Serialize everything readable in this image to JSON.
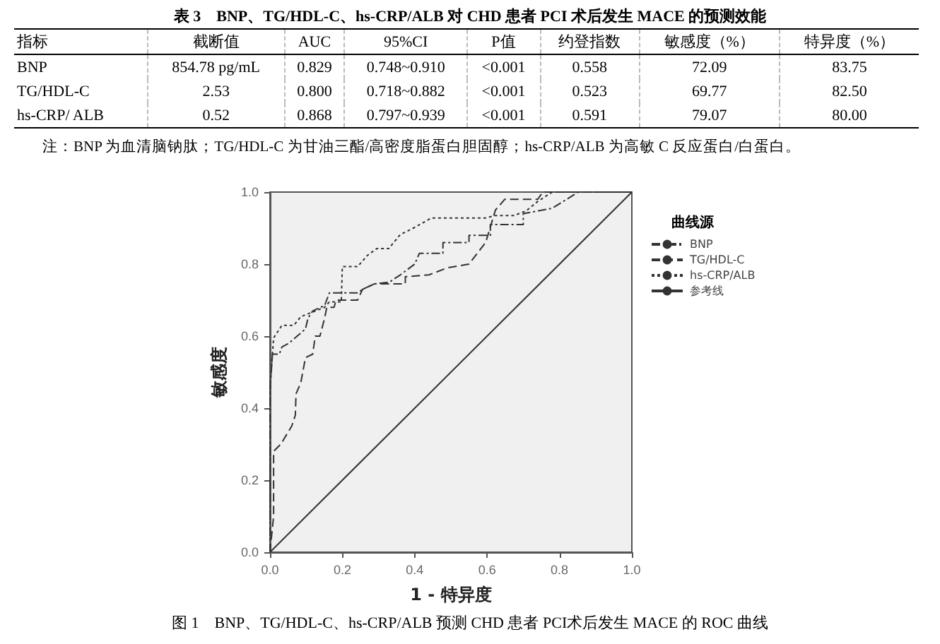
{
  "chart_data": [
    {
      "type": "other",
      "title": "表 3　BNP、TG/HDL-C、hs-CRP/ALB 对 CHD 患者 PCI 术后发生 MACE 的预测效能",
      "annotations": [
        "指标",
        "截断值",
        "AUC",
        "95%CI",
        "P值",
        "约登指数",
        "敏感度（%）",
        "特异度（%）",
        "BNP",
        "854.78 pg/mL",
        "0.829",
        "0.748~0.910",
        "<0.001",
        "0.558",
        "72.09",
        "83.75",
        "TG/HDL-C",
        "2.53",
        "0.800",
        "0.718~0.882",
        "<0.001",
        "0.523",
        "69.77",
        "82.50",
        "hs-CRP/ ALB",
        "0.52",
        "0.868",
        "0.797~0.939",
        "<0.001",
        "0.591",
        "79.07",
        "80.00",
        "注：BNP 为血清脑钠肽；TG/HDL-C 为甘油三酯/高密度脂蛋白胆固醇；hs-CRP/ALB 为高敏 C 反应蛋白/白蛋白。"
      ]
    },
    {
      "type": "line",
      "title": "图 1　BNP、TG/HDL-C、hs-CRP/ALB 预测 CHD 患者 PCI术后发生 MACE 的 ROC 曲线",
      "xlabel": "1 - 特异度",
      "ylabel": "敏感度",
      "legend_title": "曲线源",
      "legend": "right",
      "grid": false,
      "marker": "none",
      "xlim": [
        0,
        1
      ],
      "ylim": [
        0,
        1
      ],
      "xticks": [
        {
          "value": 0,
          "label": "0.0"
        },
        {
          "value": 0.2,
          "label": "0.2"
        },
        {
          "value": 0.4,
          "label": "0.4"
        },
        {
          "value": 0.6,
          "label": "0.6"
        },
        {
          "value": 0.8,
          "label": "0.8"
        },
        {
          "value": 1,
          "label": "1.0"
        }
      ],
      "yticks": [
        {
          "value": 0,
          "label": "0.0"
        },
        {
          "value": 0.2,
          "label": "0.2"
        },
        {
          "value": 0.4,
          "label": "0.4"
        },
        {
          "value": 0.6,
          "label": "0.6"
        },
        {
          "value": 0.8,
          "label": "0.8"
        },
        {
          "value": 1,
          "label": "1.0"
        }
      ],
      "series": [
        {
          "name": "BNP",
          "color": "#333333",
          "line_style": "dashdot",
          "x": [
            0,
            0,
            0.007,
            0.026,
            0.033,
            0.052,
            0.098,
            0.105,
            0.118,
            0.151,
            0.164,
            0.242,
            0.256,
            0.288,
            0.33,
            0.36,
            0.4,
            0.413,
            0.478,
            0.478,
            0.55,
            0.55,
            0.609,
            0.609,
            0.7,
            0.7,
            0.753,
            0.78,
            0.852,
            1
          ],
          "values": [
            0,
            0.45,
            0.55,
            0.55,
            0.57,
            0.58,
            0.62,
            0.65,
            0.67,
            0.685,
            0.72,
            0.72,
            0.73,
            0.745,
            0.75,
            0.77,
            0.8,
            0.83,
            0.83,
            0.86,
            0.86,
            0.88,
            0.88,
            0.91,
            0.91,
            0.94,
            0.95,
            0.955,
            1,
            1
          ]
        },
        {
          "name": "TG/HDL-C",
          "color": "#333333",
          "line_style": "dashed",
          "x": [
            0,
            0.01,
            0.01,
            0.03,
            0.06,
            0.07,
            0.072,
            0.085,
            0.098,
            0.118,
            0.125,
            0.138,
            0.151,
            0.157,
            0.177,
            0.183,
            0.242,
            0.256,
            0.288,
            0.374,
            0.374,
            0.439,
            0.491,
            0.55,
            0.596,
            0.623,
            0.649,
            0.74,
            0.754,
            1
          ],
          "values": [
            0,
            0.1,
            0.28,
            0.3,
            0.35,
            0.38,
            0.44,
            0.47,
            0.54,
            0.55,
            0.6,
            0.6,
            0.65,
            0.68,
            0.68,
            0.7,
            0.7,
            0.73,
            0.745,
            0.745,
            0.765,
            0.77,
            0.79,
            0.8,
            0.86,
            0.95,
            0.98,
            0.98,
            1,
            1
          ]
        },
        {
          "name": "hs-CRP/ALB",
          "color": "#333333",
          "line_style": "dotted",
          "x": [
            0,
            0,
            0.01,
            0.033,
            0.066,
            0.085,
            0.151,
            0.164,
            0.197,
            0.2,
            0.242,
            0.269,
            0.295,
            0.328,
            0.36,
            0.4,
            0.446,
            0.596,
            0.623,
            0.675,
            0.708,
            0.74,
            0.78,
            1
          ],
          "values": [
            0,
            0.45,
            0.595,
            0.63,
            0.63,
            0.654,
            0.68,
            0.695,
            0.695,
            0.793,
            0.793,
            0.824,
            0.843,
            0.843,
            0.882,
            0.902,
            0.928,
            0.928,
            0.935,
            0.935,
            0.948,
            0.974,
            1,
            1
          ]
        },
        {
          "name": "参考线",
          "color": "#333333",
          "line_style": "solid",
          "x": [
            0,
            1
          ],
          "values": [
            0,
            1
          ]
        }
      ]
    }
  ]
}
